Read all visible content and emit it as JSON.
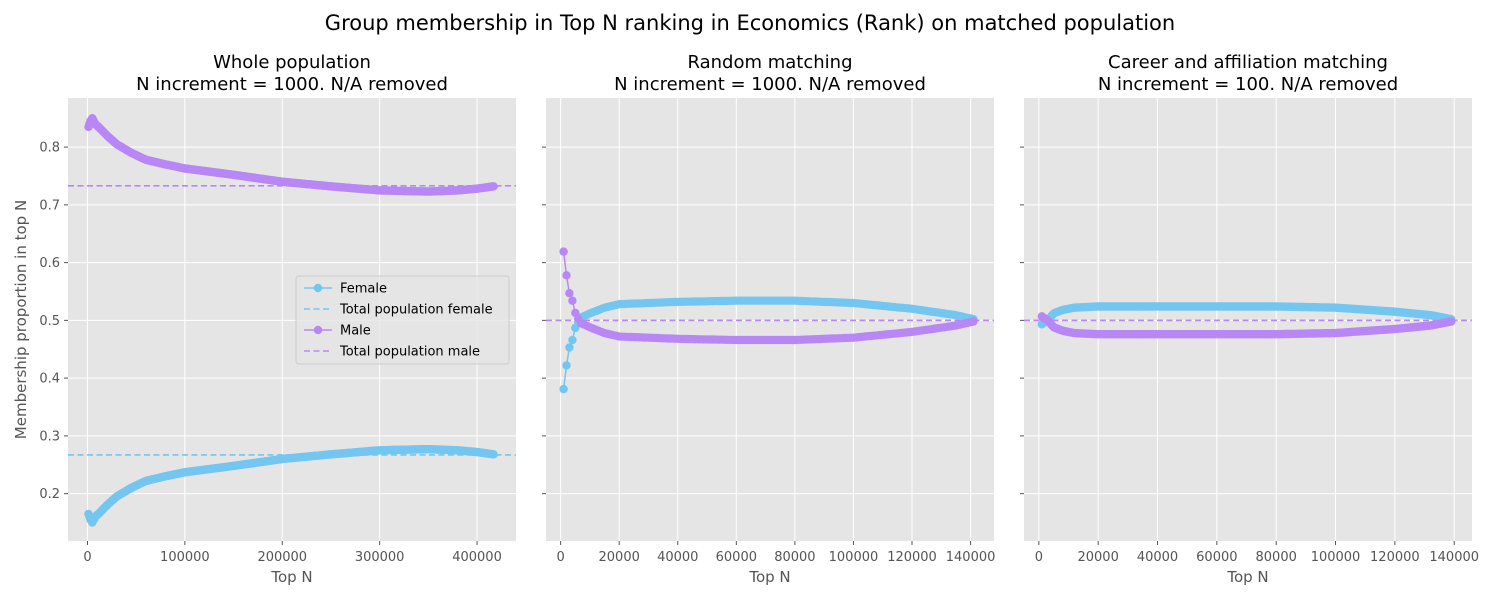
{
  "figure": {
    "suptitle": "Group membership in Top N ranking in Economics (Rank) on matched population"
  },
  "colors": {
    "female": "#73c6f0",
    "male": "#b887f5",
    "panel_bg": "#e5e5e5",
    "grid": "#ffffff"
  },
  "legend_entries": [
    {
      "label": "Female",
      "kind": "line-marker",
      "series": "female"
    },
    {
      "label": "Total population female",
      "kind": "dashed",
      "series": "female"
    },
    {
      "label": "Male",
      "kind": "line-marker",
      "series": "male"
    },
    {
      "label": "Total population male",
      "kind": "dashed",
      "series": "male"
    }
  ],
  "chart_data": [
    {
      "type": "line",
      "title_line1": "Whole population",
      "title_line2": "N increment = 1000. N/A removed",
      "xlabel": "Top N",
      "ylabel": "Membership proportion in top N",
      "xlim": [
        -20000,
        440000
      ],
      "ylim": [
        0.118,
        0.885
      ],
      "xticks": [
        0,
        100000,
        200000,
        300000,
        400000
      ],
      "xtick_labels": [
        "0",
        "100000",
        "200000",
        "300000",
        "400000"
      ],
      "yticks": [
        0.2,
        0.3,
        0.4,
        0.5,
        0.6,
        0.7,
        0.8
      ],
      "ytick_labels": [
        "0.2",
        "0.3",
        "0.4",
        "0.5",
        "0.6",
        "0.7",
        "0.8"
      ],
      "legend": "center-right",
      "grid": true,
      "series": [
        {
          "name": "Female",
          "key": "female",
          "x_start": 1000,
          "x_end": 417000,
          "count": 417,
          "anchors": [
            [
              1000,
              0.165
            ],
            [
              3000,
              0.155
            ],
            [
              5000,
              0.15
            ],
            [
              8000,
              0.16
            ],
            [
              12000,
              0.166
            ],
            [
              20000,
              0.18
            ],
            [
              30000,
              0.195
            ],
            [
              45000,
              0.21
            ],
            [
              60000,
              0.222
            ],
            [
              80000,
              0.23
            ],
            [
              100000,
              0.237
            ],
            [
              150000,
              0.248
            ],
            [
              200000,
              0.26
            ],
            [
              250000,
              0.268
            ],
            [
              300000,
              0.275
            ],
            [
              350000,
              0.277
            ],
            [
              380000,
              0.275
            ],
            [
              400000,
              0.272
            ],
            [
              417000,
              0.268
            ]
          ]
        },
        {
          "name": "Male",
          "key": "male",
          "x_start": 1000,
          "x_end": 417000,
          "count": 417,
          "anchors": [
            [
              1000,
              0.835
            ],
            [
              3000,
              0.845
            ],
            [
              5000,
              0.85
            ],
            [
              8000,
              0.84
            ],
            [
              12000,
              0.834
            ],
            [
              20000,
              0.82
            ],
            [
              30000,
              0.805
            ],
            [
              45000,
              0.79
            ],
            [
              60000,
              0.778
            ],
            [
              80000,
              0.77
            ],
            [
              100000,
              0.763
            ],
            [
              150000,
              0.752
            ],
            [
              200000,
              0.74
            ],
            [
              250000,
              0.732
            ],
            [
              300000,
              0.725
            ],
            [
              350000,
              0.723
            ],
            [
              380000,
              0.725
            ],
            [
              400000,
              0.728
            ],
            [
              417000,
              0.732
            ]
          ]
        }
      ],
      "reference_lines": [
        {
          "name": "Total population female",
          "key": "female",
          "y": 0.267
        },
        {
          "name": "Total population male",
          "key": "male",
          "y": 0.733
        }
      ]
    },
    {
      "type": "line",
      "title_line1": "Random matching",
      "title_line2": "N increment = 1000. N/A removed",
      "xlabel": "Top N",
      "xlim": [
        -5000,
        148000
      ],
      "ylim": [
        0.118,
        0.885
      ],
      "xticks": [
        0,
        20000,
        40000,
        60000,
        80000,
        100000,
        120000,
        140000
      ],
      "xtick_labels": [
        "0",
        "20000",
        "40000",
        "60000",
        "80000",
        "100000",
        "120000",
        "140000"
      ],
      "yticks": [
        0.2,
        0.3,
        0.4,
        0.5,
        0.6,
        0.7,
        0.8
      ],
      "grid": true,
      "series": [
        {
          "name": "Female",
          "key": "female",
          "x_start": 1000,
          "x_end": 141000,
          "count": 141,
          "anchors": [
            [
              1000,
              0.381
            ],
            [
              2000,
              0.422
            ],
            [
              3000,
              0.453
            ],
            [
              4000,
              0.466
            ],
            [
              5000,
              0.487
            ],
            [
              6000,
              0.497
            ],
            [
              7000,
              0.505
            ],
            [
              10000,
              0.512
            ],
            [
              15000,
              0.522
            ],
            [
              20000,
              0.528
            ],
            [
              40000,
              0.532
            ],
            [
              60000,
              0.534
            ],
            [
              80000,
              0.534
            ],
            [
              100000,
              0.53
            ],
            [
              120000,
              0.52
            ],
            [
              135000,
              0.509
            ],
            [
              141000,
              0.502
            ]
          ]
        },
        {
          "name": "Male",
          "key": "male",
          "x_start": 1000,
          "x_end": 141000,
          "count": 141,
          "anchors": [
            [
              1000,
              0.619
            ],
            [
              2000,
              0.578
            ],
            [
              3000,
              0.547
            ],
            [
              4000,
              0.534
            ],
            [
              5000,
              0.513
            ],
            [
              6000,
              0.503
            ],
            [
              7000,
              0.495
            ],
            [
              10000,
              0.488
            ],
            [
              15000,
              0.478
            ],
            [
              20000,
              0.472
            ],
            [
              40000,
              0.468
            ],
            [
              60000,
              0.466
            ],
            [
              80000,
              0.466
            ],
            [
              100000,
              0.47
            ],
            [
              120000,
              0.48
            ],
            [
              135000,
              0.491
            ],
            [
              141000,
              0.498
            ]
          ]
        }
      ],
      "reference_lines": [
        {
          "name": "Total population female",
          "key": "female",
          "y": 0.5
        },
        {
          "name": "Total population male",
          "key": "male",
          "y": 0.5
        }
      ]
    },
    {
      "type": "line",
      "title_line1": "Career and affiliation matching",
      "title_line2": "N increment = 100. N/A removed",
      "xlabel": "Top N",
      "xlim": [
        -5000,
        146000
      ],
      "ylim": [
        0.118,
        0.885
      ],
      "xticks": [
        0,
        20000,
        40000,
        60000,
        80000,
        100000,
        120000,
        140000
      ],
      "xtick_labels": [
        "0",
        "20000",
        "40000",
        "60000",
        "80000",
        "100000",
        "120000",
        "140000"
      ],
      "yticks": [
        0.2,
        0.3,
        0.4,
        0.5,
        0.6,
        0.7,
        0.8
      ],
      "grid": true,
      "series": [
        {
          "name": "Female",
          "key": "female",
          "x_start": 1000,
          "x_end": 139000,
          "count": 300,
          "anchors": [
            [
              1000,
              0.493
            ],
            [
              2000,
              0.497
            ],
            [
              3000,
              0.5
            ],
            [
              5000,
              0.512
            ],
            [
              8000,
              0.518
            ],
            [
              12000,
              0.522
            ],
            [
              20000,
              0.524
            ],
            [
              40000,
              0.524
            ],
            [
              60000,
              0.524
            ],
            [
              80000,
              0.524
            ],
            [
              100000,
              0.522
            ],
            [
              120000,
              0.515
            ],
            [
              132000,
              0.509
            ],
            [
              139000,
              0.502
            ]
          ]
        },
        {
          "name": "Male",
          "key": "male",
          "x_start": 1000,
          "x_end": 139000,
          "count": 300,
          "anchors": [
            [
              1000,
              0.507
            ],
            [
              2000,
              0.503
            ],
            [
              3000,
              0.5
            ],
            [
              5000,
              0.488
            ],
            [
              8000,
              0.482
            ],
            [
              12000,
              0.478
            ],
            [
              20000,
              0.476
            ],
            [
              40000,
              0.476
            ],
            [
              60000,
              0.476
            ],
            [
              80000,
              0.476
            ],
            [
              100000,
              0.478
            ],
            [
              120000,
              0.485
            ],
            [
              132000,
              0.491
            ],
            [
              139000,
              0.498
            ]
          ]
        }
      ],
      "reference_lines": [
        {
          "name": "Total population female",
          "key": "female",
          "y": 0.5
        },
        {
          "name": "Total population male",
          "key": "male",
          "y": 0.5
        }
      ]
    }
  ]
}
